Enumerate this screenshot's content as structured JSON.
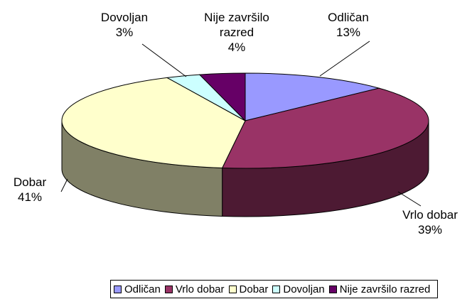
{
  "chart_data": {
    "type": "pie",
    "categories": [
      "Odličan",
      "Vrlo dobar",
      "Dobar",
      "Dovoljan",
      "Nije završilo razred"
    ],
    "values": [
      13,
      39,
      41,
      3,
      4
    ],
    "value_labels": [
      "13%",
      "39%",
      "41%",
      "3%",
      "4%"
    ],
    "colors": [
      "#9999ff",
      "#993366",
      "#ffffcc",
      "#ccffff",
      "#660066"
    ],
    "legend": "bottom"
  }
}
